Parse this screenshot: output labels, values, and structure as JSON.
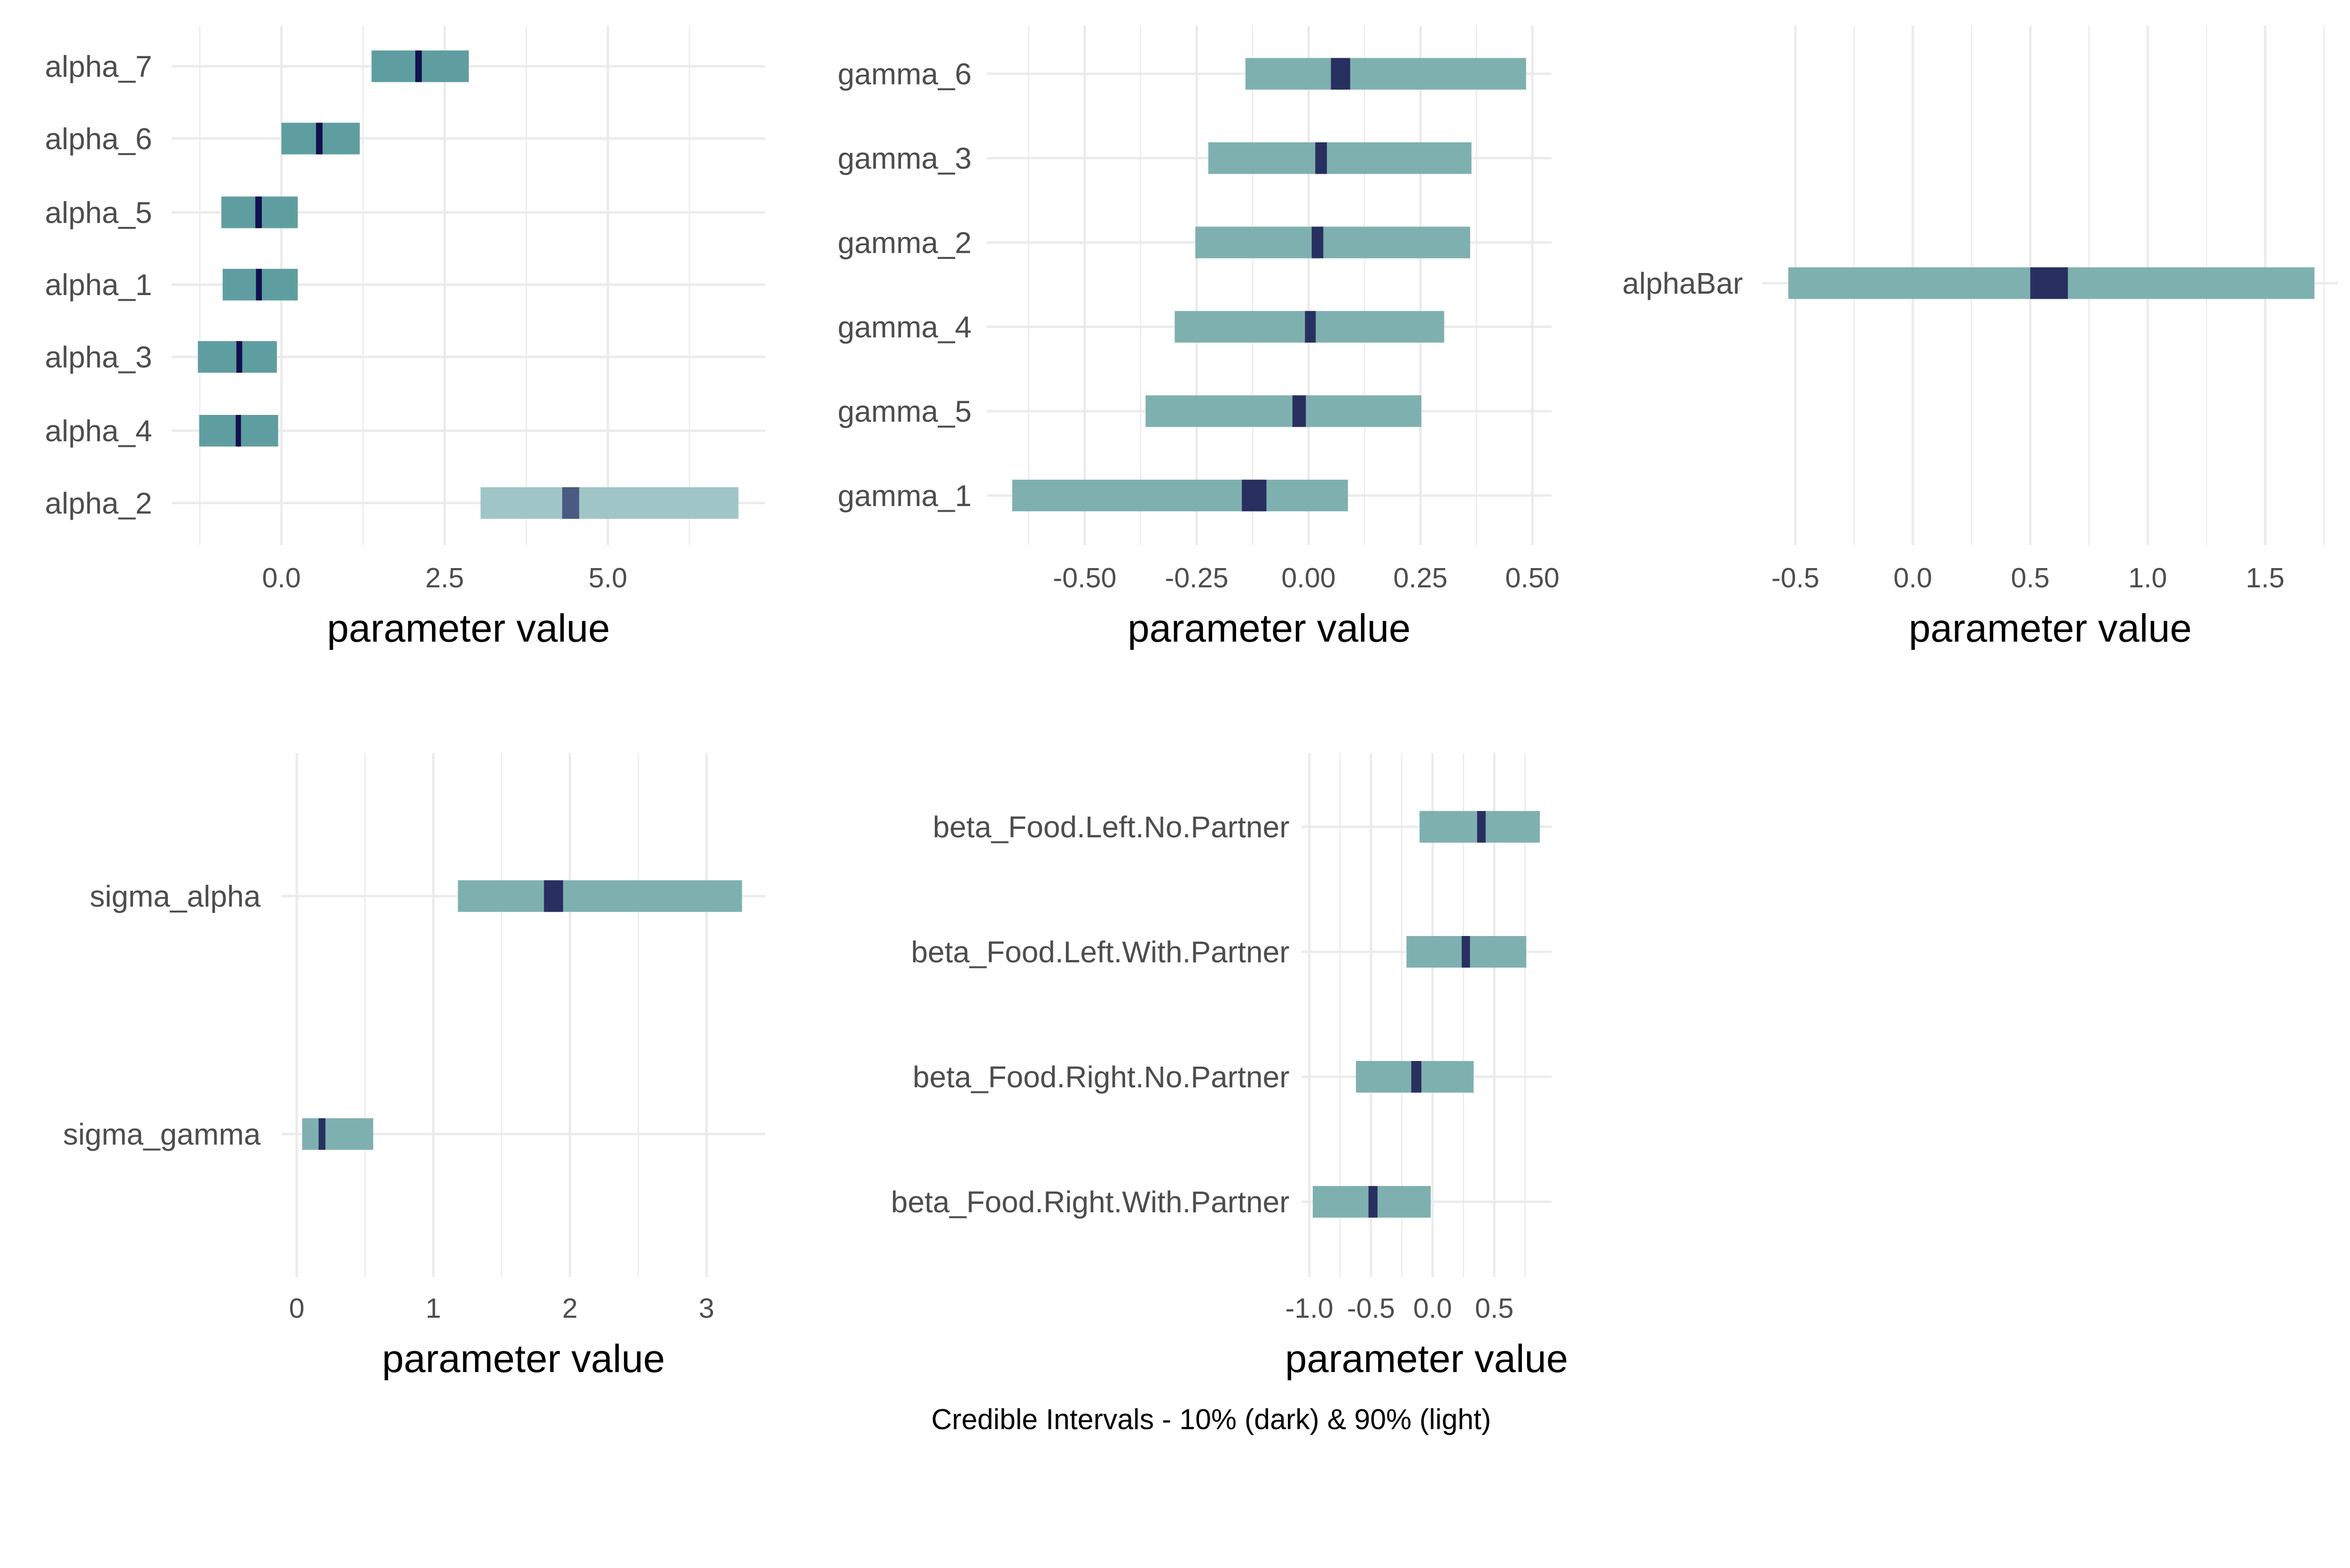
{
  "caption": "Credible Intervals - 10% (dark) & 90% (light)",
  "colors": {
    "outer_default": "#7fb0b0",
    "inner_default": "#283060",
    "outer_alpha": "#5f9ea0",
    "inner_alpha": "#12104e",
    "outer_alpha_2": "#a0c5c6",
    "inner_alpha_2": "#4a5a80",
    "grid": "#ebebeb"
  },
  "chart_data": [
    {
      "type": "interval",
      "xlabel": "parameter value",
      "xlim": [
        -1.68,
        7.41
      ],
      "xticks": [
        0.0,
        2.5,
        5.0
      ],
      "xtick_labels": [
        "0.0",
        "2.5",
        "5.0"
      ],
      "grid": true,
      "params": [
        {
          "name": "alpha_7",
          "outer": [
            1.38,
            2.87
          ],
          "inner": [
            2.05,
            2.15
          ],
          "color": "alpha"
        },
        {
          "name": "alpha_6",
          "outer": [
            0.0,
            1.2
          ],
          "inner": [
            0.53,
            0.63
          ],
          "color": "alpha"
        },
        {
          "name": "alpha_5",
          "outer": [
            -0.92,
            0.25
          ],
          "inner": [
            -0.4,
            -0.3
          ],
          "color": "alpha"
        },
        {
          "name": "alpha_1",
          "outer": [
            -0.9,
            0.25
          ],
          "inner": [
            -0.39,
            -0.3
          ],
          "color": "alpha"
        },
        {
          "name": "alpha_3",
          "outer": [
            -1.28,
            -0.07
          ],
          "inner": [
            -0.69,
            -0.6
          ],
          "color": "alpha"
        },
        {
          "name": "alpha_4",
          "outer": [
            -1.26,
            -0.05
          ],
          "inner": [
            -0.7,
            -0.62
          ],
          "color": "alpha"
        },
        {
          "name": "alpha_2",
          "outer": [
            3.05,
            7.0
          ],
          "inner": [
            4.3,
            4.56
          ],
          "color": "alpha_2"
        }
      ]
    },
    {
      "type": "interval",
      "xlabel": "parameter value",
      "xlim": [
        -0.719,
        0.543
      ],
      "xticks": [
        -0.5,
        -0.25,
        0.0,
        0.25,
        0.5
      ],
      "xtick_labels": [
        "-0.50",
        "-0.25",
        "0.00",
        "0.25",
        "0.50"
      ],
      "grid": true,
      "params": [
        {
          "name": "gamma_6",
          "outer": [
            -0.141,
            0.486
          ],
          "inner": [
            0.05,
            0.093
          ]
        },
        {
          "name": "gamma_3",
          "outer": [
            -0.224,
            0.364
          ],
          "inner": [
            0.015,
            0.041
          ]
        },
        {
          "name": "gamma_2",
          "outer": [
            -0.253,
            0.361
          ],
          "inner": [
            0.007,
            0.033
          ]
        },
        {
          "name": "gamma_4",
          "outer": [
            -0.299,
            0.303
          ],
          "inner": [
            -0.008,
            0.016
          ]
        },
        {
          "name": "gamma_5",
          "outer": [
            -0.364,
            0.252
          ],
          "inner": [
            -0.036,
            -0.006
          ]
        },
        {
          "name": "gamma_1",
          "outer": [
            -0.662,
            0.088
          ],
          "inner": [
            -0.149,
            -0.094
          ]
        }
      ]
    },
    {
      "type": "interval",
      "xlabel": "parameter value",
      "xlim": [
        -0.64,
        1.81
      ],
      "xticks": [
        -0.5,
        0.0,
        0.5,
        1.0,
        1.5
      ],
      "xtick_labels": [
        "-0.5",
        "0.0",
        "0.5",
        "1.0",
        "1.5"
      ],
      "grid": true,
      "params": [
        {
          "name": "alphaBar",
          "outer": [
            -0.53,
            1.71
          ],
          "inner": [
            0.5,
            0.66
          ]
        }
      ]
    },
    {
      "type": "interval",
      "xlabel": "parameter value",
      "xlim": [
        -0.11,
        3.43
      ],
      "xticks": [
        0,
        1,
        2,
        3
      ],
      "xtick_labels": [
        "0",
        "1",
        "2",
        "3"
      ],
      "grid": true,
      "params": [
        {
          "name": "sigma_alpha",
          "outer": [
            1.18,
            3.26
          ],
          "inner": [
            1.81,
            1.95
          ]
        },
        {
          "name": "sigma_gamma",
          "outer": [
            0.04,
            0.56
          ],
          "inner": [
            0.16,
            0.21
          ]
        }
      ]
    },
    {
      "type": "interval",
      "xlabel": "parameter value",
      "xlim": [
        -1.063,
        0.965
      ],
      "xticks": [
        -1.0,
        -0.5,
        0.0,
        0.5
      ],
      "xtick_labels": [
        "-1.0",
        "-0.5",
        "0.0",
        "0.5"
      ],
      "grid": true,
      "params": [
        {
          "name": "beta_Food.Left.No.Partner",
          "outer": [
            -0.106,
            0.87
          ],
          "inner": [
            0.361,
            0.43
          ]
        },
        {
          "name": "beta_Food.Left.With.Partner",
          "outer": [
            -0.212,
            0.76
          ],
          "inner": [
            0.236,
            0.303
          ]
        },
        {
          "name": "beta_Food.Right.No.Partner",
          "outer": [
            -0.622,
            0.333
          ],
          "inner": [
            -0.173,
            -0.091
          ]
        },
        {
          "name": "beta_Food.Right.With.Partner",
          "outer": [
            -0.972,
            -0.015
          ],
          "inner": [
            -0.52,
            -0.447
          ]
        }
      ]
    }
  ]
}
